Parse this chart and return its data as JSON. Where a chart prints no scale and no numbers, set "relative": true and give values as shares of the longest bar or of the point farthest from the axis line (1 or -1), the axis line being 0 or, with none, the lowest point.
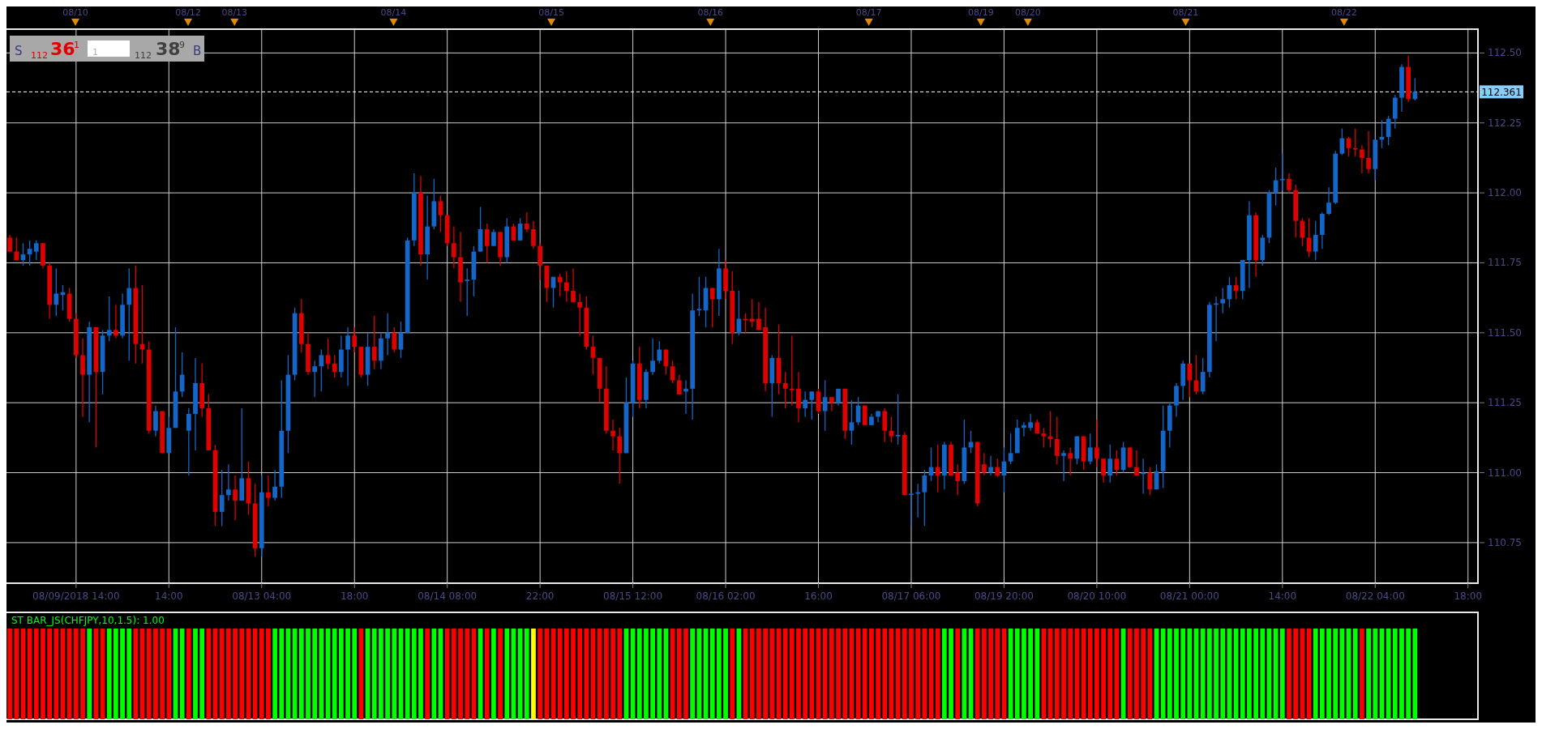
{
  "chart_data": [
    {
      "type": "candlestick",
      "categories": [
        null,
        null,
        null,
        null,
        null,
        null,
        null,
        null,
        null,
        null,
        "08/09/2018 14:00",
        null,
        null,
        null,
        null,
        null,
        null,
        null,
        null,
        null,
        null,
        null,
        null,
        null,
        "14:00",
        null,
        null,
        null,
        null,
        null,
        null,
        null,
        null,
        null,
        null,
        null,
        null,
        null,
        "08/13 04:00",
        null,
        null,
        null,
        null,
        null,
        null,
        null,
        null,
        null,
        null,
        null,
        null,
        null,
        "18:00",
        null,
        null,
        null,
        null,
        null,
        null,
        null,
        null,
        null,
        null,
        null,
        null,
        null,
        "08/14 08:00",
        null,
        null,
        null,
        null,
        null,
        null,
        null,
        null,
        null,
        null,
        null,
        null,
        null,
        "22:00",
        null,
        null,
        null,
        null,
        null,
        null,
        null,
        null,
        null,
        null,
        null,
        null,
        null,
        "08/15 12:00",
        null,
        null,
        null,
        null,
        null,
        null,
        null,
        null,
        null,
        null,
        null,
        null,
        null,
        "08/16 02:00",
        null,
        null,
        null,
        null,
        null,
        null,
        null,
        null,
        null,
        null,
        null,
        null,
        null,
        "16:00",
        null,
        null,
        null,
        null,
        null,
        null,
        null,
        null,
        null,
        null,
        null,
        null,
        null,
        "08/17 06:00",
        null,
        null,
        null,
        null,
        null,
        null,
        null,
        null,
        null,
        null,
        null,
        null,
        null,
        "08/19 20:00",
        null,
        null,
        null,
        null,
        null,
        null,
        null,
        null,
        null,
        null,
        null,
        null,
        null,
        "08/20 10:00",
        null,
        null,
        null,
        null,
        null,
        null,
        null,
        null,
        null,
        null,
        null,
        null,
        null,
        "08/21 00:00",
        null,
        null,
        null,
        null,
        null,
        null,
        null,
        null,
        null,
        null,
        null,
        null,
        null,
        "14:00",
        null,
        null,
        null,
        null,
        null,
        null,
        null,
        null,
        null,
        null,
        null,
        null,
        null,
        "08/22 04:00",
        null,
        null,
        null,
        null,
        null,
        null,
        null,
        null,
        null,
        null,
        null,
        null,
        null,
        "18:00",
        null
      ],
      "ohlc": [
        [
          111.84,
          111.85,
          111.79,
          111.79
        ],
        [
          111.79,
          111.84,
          111.76,
          111.76
        ],
        [
          111.76,
          111.82,
          111.74,
          111.78
        ],
        [
          111.78,
          111.83,
          111.74,
          111.8
        ],
        [
          111.79,
          111.83,
          111.76,
          111.82
        ],
        [
          111.82,
          111.82,
          111.73,
          111.74
        ],
        [
          111.74,
          111.75,
          111.55,
          111.6
        ],
        [
          111.6,
          111.73,
          111.56,
          111.64
        ],
        [
          111.635,
          111.67,
          111.58,
          111.645
        ],
        [
          111.64,
          111.66,
          111.54,
          111.55
        ],
        [
          111.55,
          111.57,
          111.41,
          111.42
        ],
        [
          111.42,
          111.48,
          111.2,
          111.35
        ],
        [
          111.35,
          111.54,
          111.18,
          111.52
        ],
        [
          111.52,
          111.52,
          111.09,
          111.36
        ],
        [
          111.36,
          111.51,
          111.28,
          111.49
        ],
        [
          111.49,
          111.63,
          111.47,
          111.51
        ],
        [
          111.51,
          111.6,
          111.48,
          111.49
        ],
        [
          111.49,
          111.64,
          111.48,
          111.6
        ],
        [
          111.6,
          111.73,
          111.4,
          111.66
        ],
        [
          111.66,
          111.74,
          111.39,
          111.46
        ],
        [
          111.46,
          111.67,
          111.39,
          111.44
        ],
        [
          111.44,
          111.47,
          111.14,
          111.15
        ],
        [
          111.15,
          111.24,
          111.13,
          111.22
        ],
        [
          111.22,
          111.22,
          111.07,
          111.07
        ],
        [
          111.07,
          111.2,
          111.07,
          111.16
        ],
        [
          111.16,
          111.52,
          111.16,
          111.29
        ],
        [
          111.29,
          111.43,
          111.27,
          111.35
        ],
        [
          111.15,
          111.23,
          110.99,
          111.21
        ],
        [
          111.21,
          111.41,
          111.08,
          111.32
        ],
        [
          111.32,
          111.39,
          111.2,
          111.23
        ],
        [
          111.23,
          111.28,
          111.08,
          111.08
        ],
        [
          111.08,
          111.1,
          110.81,
          110.86
        ],
        [
          110.86,
          111.01,
          110.81,
          110.92
        ],
        [
          110.92,
          111.03,
          110.9,
          110.94
        ],
        [
          110.94,
          110.99,
          110.83,
          110.9
        ],
        [
          110.9,
          111.23,
          110.9,
          110.98
        ],
        [
          110.98,
          111.04,
          110.85,
          110.89
        ],
        [
          110.89,
          110.96,
          110.7,
          110.73
        ],
        [
          110.73,
          110.99,
          110.7,
          110.93
        ],
        [
          110.93,
          110.99,
          110.88,
          110.91
        ],
        [
          110.91,
          111.01,
          110.9,
          110.95
        ],
        [
          110.95,
          111.33,
          110.91,
          111.15
        ],
        [
          111.15,
          111.42,
          111.07,
          111.35
        ],
        [
          111.35,
          111.59,
          111.33,
          111.57
        ],
        [
          111.57,
          111.62,
          111.43,
          111.46
        ],
        [
          111.46,
          111.5,
          111.35,
          111.36
        ],
        [
          111.36,
          111.4,
          111.27,
          111.38
        ],
        [
          111.38,
          111.44,
          111.29,
          111.42
        ],
        [
          111.42,
          111.48,
          111.37,
          111.39
        ],
        [
          111.39,
          111.42,
          111.34,
          111.36
        ],
        [
          111.36,
          111.49,
          111.34,
          111.44
        ],
        [
          111.44,
          111.52,
          111.31,
          111.49
        ],
        [
          111.49,
          111.52,
          111.43,
          111.45
        ],
        [
          111.45,
          111.45,
          111.34,
          111.35
        ],
        [
          111.35,
          111.5,
          111.31,
          111.45
        ],
        [
          111.45,
          111.56,
          111.37,
          111.4
        ],
        [
          111.4,
          111.5,
          111.37,
          111.48
        ],
        [
          111.48,
          111.57,
          111.42,
          111.5
        ],
        [
          111.5,
          111.52,
          111.43,
          111.44
        ],
        [
          111.44,
          111.54,
          111.41,
          111.5
        ],
        [
          111.5,
          111.84,
          111.5,
          111.83
        ],
        [
          111.83,
          112.07,
          111.81,
          112.0
        ],
        [
          112.0,
          112.06,
          111.74,
          111.78
        ],
        [
          111.78,
          111.99,
          111.69,
          111.88
        ],
        [
          111.88,
          112.05,
          111.87,
          111.97
        ],
        [
          111.97,
          111.99,
          111.86,
          111.92
        ],
        [
          111.92,
          111.92,
          111.81,
          111.82
        ],
        [
          111.82,
          111.88,
          111.73,
          111.77
        ],
        [
          111.77,
          111.86,
          111.61,
          111.68
        ],
        [
          111.685,
          111.73,
          111.56,
          111.69
        ],
        [
          111.69,
          111.81,
          111.63,
          111.79
        ],
        [
          111.79,
          111.95,
          111.79,
          111.87
        ],
        [
          111.87,
          111.89,
          111.75,
          111.81
        ],
        [
          111.81,
          111.87,
          111.81,
          111.86
        ],
        [
          111.86,
          111.86,
          111.74,
          111.77
        ],
        [
          111.77,
          111.91,
          111.75,
          111.88
        ],
        [
          111.88,
          111.89,
          111.83,
          111.83
        ],
        [
          111.83,
          111.91,
          111.83,
          111.89
        ],
        [
          111.89,
          111.93,
          111.86,
          111.87
        ],
        [
          111.87,
          111.9,
          111.8,
          111.81
        ],
        [
          111.81,
          111.82,
          111.69,
          111.74
        ],
        [
          111.74,
          111.74,
          111.61,
          111.66
        ],
        [
          111.66,
          111.7,
          111.59,
          111.7
        ],
        [
          111.7,
          111.71,
          111.63,
          111.68
        ],
        [
          111.68,
          111.72,
          111.61,
          111.65
        ],
        [
          111.65,
          111.73,
          111.61,
          111.61
        ],
        [
          111.61,
          111.64,
          111.49,
          111.59
        ],
        [
          111.59,
          111.63,
          111.44,
          111.45
        ],
        [
          111.45,
          111.49,
          111.35,
          111.41
        ],
        [
          111.41,
          111.41,
          111.25,
          111.3
        ],
        [
          111.3,
          111.38,
          111.14,
          111.15
        ],
        [
          111.15,
          111.19,
          111.08,
          111.13
        ],
        [
          111.13,
          111.16,
          110.96,
          111.07
        ],
        [
          111.07,
          111.34,
          111.07,
          111.25
        ],
        [
          111.25,
          111.4,
          111.2,
          111.39
        ],
        [
          111.39,
          111.45,
          111.23,
          111.26
        ],
        [
          111.26,
          111.37,
          111.23,
          111.36
        ],
        [
          111.36,
          111.48,
          111.35,
          111.4
        ],
        [
          111.4,
          111.47,
          111.39,
          111.44
        ],
        [
          111.44,
          111.44,
          111.35,
          111.38
        ],
        [
          111.38,
          111.4,
          111.32,
          111.33
        ],
        [
          111.33,
          111.35,
          111.28,
          111.28
        ],
        [
          111.29,
          111.33,
          111.21,
          111.3
        ],
        [
          111.3,
          111.64,
          111.19,
          111.58
        ],
        [
          111.58,
          111.7,
          111.56,
          111.585
        ],
        [
          111.58,
          111.7,
          111.52,
          111.66
        ],
        [
          111.66,
          111.66,
          111.52,
          111.62
        ],
        [
          111.62,
          111.8,
          111.56,
          111.73
        ],
        [
          111.73,
          111.76,
          111.62,
          111.65
        ],
        [
          111.65,
          111.72,
          111.46,
          111.5
        ],
        [
          111.5,
          111.65,
          111.49,
          111.55
        ],
        [
          111.55,
          111.57,
          111.5,
          111.545
        ],
        [
          111.55,
          111.62,
          111.52,
          111.54
        ],
        [
          111.55,
          111.61,
          111.51,
          111.51
        ],
        [
          111.52,
          111.59,
          111.29,
          111.32
        ],
        [
          111.32,
          111.42,
          111.2,
          111.41
        ],
        [
          111.41,
          111.53,
          111.28,
          111.32
        ],
        [
          111.32,
          111.36,
          111.23,
          111.3
        ],
        [
          111.3,
          111.49,
          111.24,
          111.295
        ],
        [
          111.3,
          111.36,
          111.18,
          111.23
        ],
        [
          111.23,
          111.29,
          111.2,
          111.26
        ],
        [
          111.26,
          111.29,
          111.19,
          111.29
        ],
        [
          111.29,
          111.3,
          111.21,
          111.22
        ],
        [
          111.22,
          111.33,
          111.15,
          111.27
        ],
        [
          111.27,
          111.27,
          111.22,
          111.25
        ],
        [
          111.25,
          111.3,
          111.24,
          111.3
        ],
        [
          111.3,
          111.3,
          111.12,
          111.15
        ],
        [
          111.15,
          111.26,
          111.1,
          111.18
        ],
        [
          111.18,
          111.27,
          111.17,
          111.24
        ],
        [
          111.24,
          111.24,
          111.17,
          111.17
        ],
        [
          111.17,
          111.21,
          111.17,
          111.2
        ],
        [
          111.2,
          111.22,
          111.18,
          111.22
        ],
        [
          111.22,
          111.23,
          111.11,
          111.15
        ],
        [
          111.15,
          111.2,
          111.11,
          111.13
        ],
        [
          111.13,
          111.28,
          111.1,
          111.135
        ],
        [
          111.135,
          111.145,
          110.92,
          110.92
        ],
        [
          110.92,
          110.93,
          110.81,
          110.925
        ],
        [
          110.925,
          110.96,
          110.84,
          110.93
        ],
        [
          110.93,
          111.01,
          110.81,
          110.99
        ],
        [
          110.99,
          111.09,
          110.97,
          111.02
        ],
        [
          111.02,
          111.1,
          110.93,
          110.99
        ],
        [
          110.99,
          111.11,
          110.94,
          111.1
        ],
        [
          111.1,
          111.11,
          110.99,
          110.99
        ],
        [
          111.0,
          111.03,
          110.92,
          110.97
        ],
        [
          110.97,
          111.19,
          110.96,
          111.09
        ],
        [
          111.09,
          111.15,
          111.07,
          111.11
        ],
        [
          111.11,
          111.11,
          110.88,
          110.89
        ],
        [
          111.03,
          111.07,
          110.99,
          111.0
        ],
        [
          111.0,
          111.06,
          110.99,
          111.02
        ],
        [
          111.02,
          111.05,
          110.985,
          110.99
        ],
        [
          110.99,
          111.09,
          110.93,
          111.04
        ],
        [
          111.04,
          111.14,
          111.03,
          111.07
        ],
        [
          111.07,
          111.19,
          111.07,
          111.16
        ],
        [
          111.16,
          111.18,
          111.13,
          111.17
        ],
        [
          111.16,
          111.21,
          111.15,
          111.18
        ],
        [
          111.18,
          111.19,
          111.14,
          111.14
        ],
        [
          111.14,
          111.16,
          111.09,
          111.13
        ],
        [
          111.13,
          111.22,
          111.09,
          111.12
        ],
        [
          111.12,
          111.2,
          111.03,
          111.06
        ],
        [
          111.06,
          111.08,
          110.97,
          111.07
        ],
        [
          111.07,
          111.09,
          110.99,
          111.05
        ],
        [
          111.05,
          111.13,
          111.03,
          111.13
        ],
        [
          111.13,
          111.13,
          111.01,
          111.04
        ],
        [
          111.04,
          111.14,
          111.03,
          111.09
        ],
        [
          111.09,
          111.19,
          111.02,
          111.05
        ],
        [
          111.05,
          111.05,
          110.965,
          110.99
        ],
        [
          110.99,
          111.1,
          110.965,
          111.05
        ],
        [
          111.05,
          111.08,
          110.99,
          111.01
        ],
        [
          111.01,
          111.11,
          111.0,
          111.09
        ],
        [
          111.09,
          111.09,
          111.02,
          111.02
        ],
        [
          111.02,
          111.08,
          110.99,
          110.99
        ],
        [
          110.995,
          111.05,
          110.925,
          111.0
        ],
        [
          111.0,
          111.02,
          110.92,
          110.94
        ],
        [
          110.94,
          111.03,
          110.94,
          111.005
        ],
        [
          111.005,
          111.24,
          110.945,
          111.15
        ],
        [
          111.15,
          111.25,
          111.09,
          111.24
        ],
        [
          111.24,
          111.32,
          111.2,
          111.31
        ],
        [
          111.31,
          111.4,
          111.26,
          111.39
        ],
        [
          111.39,
          111.39,
          111.27,
          111.33
        ],
        [
          111.33,
          111.42,
          111.28,
          111.29
        ],
        [
          111.29,
          111.41,
          111.28,
          111.36
        ],
        [
          111.36,
          111.61,
          111.34,
          111.6
        ],
        [
          111.6,
          111.63,
          111.47,
          111.605
        ],
        [
          111.605,
          111.66,
          111.57,
          111.62
        ],
        [
          111.62,
          111.7,
          111.59,
          111.67
        ],
        [
          111.67,
          111.7,
          111.62,
          111.65
        ],
        [
          111.65,
          111.76,
          111.62,
          111.76
        ],
        [
          111.76,
          111.97,
          111.66,
          111.92
        ],
        [
          111.92,
          111.93,
          111.7,
          111.76
        ],
        [
          111.76,
          111.85,
          111.74,
          111.84
        ],
        [
          111.84,
          112.01,
          111.82,
          112.0
        ],
        [
          112.0,
          112.09,
          111.955,
          112.045
        ],
        [
          112.045,
          112.14,
          112.01,
          112.05
        ],
        [
          112.05,
          112.07,
          112.0,
          112.01
        ],
        [
          112.01,
          112.03,
          111.84,
          111.9
        ],
        [
          111.9,
          111.91,
          111.81,
          111.84
        ],
        [
          111.84,
          111.91,
          111.77,
          111.79
        ],
        [
          111.79,
          111.9,
          111.76,
          111.85
        ],
        [
          111.85,
          111.93,
          111.8,
          111.925
        ],
        [
          111.925,
          112.02,
          111.92,
          111.965
        ],
        [
          111.965,
          112.15,
          111.96,
          112.14
        ],
        [
          112.14,
          112.23,
          112.135,
          112.195
        ],
        [
          112.195,
          112.2,
          112.13,
          112.16
        ],
        [
          112.16,
          112.23,
          112.13,
          112.155
        ],
        [
          112.155,
          112.17,
          112.07,
          112.125
        ],
        [
          112.125,
          112.22,
          112.07,
          112.085
        ],
        [
          112.085,
          112.19,
          112.045,
          112.19
        ],
        [
          112.19,
          112.26,
          112.16,
          112.2
        ],
        [
          112.2,
          112.275,
          112.17,
          112.265
        ],
        [
          112.265,
          112.35,
          112.23,
          112.34
        ],
        [
          112.34,
          112.46,
          112.29,
          112.45
        ],
        [
          112.45,
          112.49,
          112.325,
          112.335
        ],
        [
          112.335,
          112.41,
          112.33,
          112.361
        ],
        null,
        null,
        null,
        null,
        null,
        null,
        null,
        null,
        null
      ],
      "colors": [
        "#e00000",
        "#e00000",
        "#1466c8",
        "#1466c8",
        "#1466c8",
        "#e00000",
        "#e00000",
        "#1466c8",
        "#1466c8",
        "#e00000",
        "#e00000",
        "#e00000",
        "#1466c8",
        "#e00000",
        "#1466c8",
        "#1466c8",
        "#e00000",
        "#1466c8",
        "#1466c8",
        "#e00000",
        "#e00000",
        "#e00000",
        "#1466c8",
        "#e00000",
        "#1466c8",
        "#1466c8",
        "#1466c8",
        "#1466c8",
        "#1466c8",
        "#e00000",
        "#e00000",
        "#e00000",
        "#1466c8",
        "#1466c8",
        "#e00000",
        "#1466c8",
        "#e00000",
        "#e00000",
        "#1466c8",
        "#e00000",
        "#1466c8",
        "#1466c8",
        "#1466c8",
        "#1466c8",
        "#e00000",
        "#e00000",
        "#1466c8",
        "#1466c8",
        "#e00000",
        "#e00000",
        "#1466c8",
        "#1466c8",
        "#e00000",
        "#e00000",
        "#1466c8",
        "#e00000",
        "#1466c8",
        "#1466c8",
        "#e00000",
        "#1466c8",
        "#1466c8",
        "#1466c8",
        "#e00000",
        "#1466c8",
        "#1466c8",
        "#e00000",
        "#e00000",
        "#e00000",
        "#e00000",
        "#1466c8",
        "#1466c8",
        "#1466c8",
        "#e00000",
        "#1466c8",
        "#e00000",
        "#1466c8",
        "#e00000",
        "#1466c8",
        "#e00000",
        "#e00000",
        "#e00000",
        "#e00000",
        "#1466c8",
        "#e00000",
        "#e00000",
        "#e00000",
        "#e00000",
        "#e00000",
        "#e00000",
        "#e00000",
        "#e00000",
        "#e00000",
        "#e00000",
        "#1466c8",
        "#1466c8",
        "#e00000",
        "#1466c8",
        "#1466c8",
        "#1466c8",
        "#e00000",
        "#e00000",
        "#e00000",
        "#1466c8",
        "#1466c8",
        "#1466c8",
        "#1466c8",
        "#e00000",
        "#1466c8",
        "#e00000",
        "#e00000",
        "#1466c8",
        "#e00000",
        "#e00000",
        "#e00000",
        "#e00000",
        "#1466c8",
        "#e00000",
        "#e00000",
        "#e00000",
        "#e00000",
        "#1466c8",
        "#1466c8",
        "#e00000",
        "#1466c8",
        "#e00000",
        "#1466c8",
        "#e00000",
        "#1466c8",
        "#1466c8",
        "#e00000",
        "#1466c8",
        "#1466c8",
        "#e00000",
        "#e00000",
        "#1466c8",
        "#e00000",
        "#1466c8",
        "#1466c8",
        "#1466c8",
        "#1466c8",
        "#e00000",
        "#1466c8",
        "#e00000",
        "#e00000",
        "#1466c8",
        "#1466c8",
        "#e00000",
        "#e00000",
        "#1466c8",
        "#e00000",
        "#1466c8",
        "#1466c8",
        "#1466c8",
        "#1466c8",
        "#1466c8",
        "#e00000",
        "#e00000",
        "#e00000",
        "#e00000",
        "#1466c8",
        "#e00000",
        "#1466c8",
        "#e00000",
        "#1466c8",
        "#e00000",
        "#e00000",
        "#1466c8",
        "#e00000",
        "#1466c8",
        "#e00000",
        "#e00000",
        "#1466c8",
        "#e00000",
        "#1466c8",
        "#1466c8",
        "#1466c8",
        "#1466c8",
        "#1466c8",
        "#e00000",
        "#e00000",
        "#1466c8",
        "#1466c8",
        "#1466c8",
        "#1466c8",
        "#1466c8",
        "#e00000",
        "#1466c8",
        "#1466c8",
        "#e00000",
        "#1466c8",
        "#1466c8",
        "#1466c8",
        "#1466c8",
        "#e00000",
        "#e00000",
        "#e00000",
        "#e00000",
        "#1466c8",
        "#1466c8",
        "#1466c8",
        "#1466c8",
        "#1466c8",
        "#e00000",
        "#e00000",
        "#e00000",
        "#e00000",
        "#1466c8",
        "#1466c8",
        "#1466c8",
        "#1466c8",
        "#1466c8",
        "#e00000",
        "#1466c8",
        null,
        null,
        null,
        null,
        null,
        null,
        null,
        null,
        null
      ],
      "ylim": [
        110.605,
        112.585
      ],
      "yticks": [
        {
          "value": 110.75,
          "label": "110.75"
        },
        {
          "value": 111,
          "label": "111.00"
        },
        {
          "value": 111.25,
          "label": "111.25"
        },
        {
          "value": 111.5,
          "label": "111.50"
        },
        {
          "value": 111.75,
          "label": "111.75"
        },
        {
          "value": 112,
          "label": "112.00"
        },
        {
          "value": 112.25,
          "label": "112.25"
        },
        {
          "value": 112.5,
          "label": "112.50"
        }
      ],
      "grid": true,
      "ref_lines": [
        {
          "axis": "y",
          "value": 112.361,
          "label": "112.361",
          "color": "#ffffff",
          "line_style": "dashed"
        }
      ],
      "annotations": [
        "S",
        "112",
        "36",
        "1",
        "1",
        "112",
        "38",
        "9",
        "B",
        "08/10",
        "08/12",
        "08/13",
        "08/14",
        "08/15",
        "08/16",
        "08/17",
        "08/19",
        "08/20",
        "08/21",
        "08/22"
      ]
    },
    {
      "type": "bar",
      "relative": true,
      "title": "ST BAR_JS(CHFJPY,10,1.5): 1.00",
      "categories": [
        null,
        null,
        null,
        null,
        null,
        null,
        null,
        null,
        null,
        null,
        null,
        null,
        null,
        null,
        null,
        null,
        null,
        null,
        null,
        null,
        null,
        null,
        null,
        null,
        null,
        null,
        null,
        null,
        null,
        null,
        null,
        null,
        null,
        null,
        null,
        null,
        null,
        null,
        null,
        null,
        null,
        null,
        null,
        null,
        null,
        null,
        null,
        null,
        null,
        null,
        null,
        null,
        null,
        null,
        null,
        null,
        null,
        null,
        null,
        null,
        null,
        null,
        null,
        null,
        null,
        null,
        null,
        null,
        null,
        null,
        null,
        null,
        null,
        null,
        null,
        null,
        null,
        null,
        null,
        null,
        null,
        null,
        null,
        null,
        null,
        null,
        null,
        null,
        null,
        null,
        null,
        null,
        null,
        null,
        null,
        null,
        null,
        null,
        null,
        null,
        null,
        null,
        null,
        null,
        null,
        null,
        null,
        null,
        null,
        null,
        null,
        null,
        null,
        null,
        null,
        null,
        null,
        null,
        null,
        null,
        null,
        null,
        null,
        null,
        null,
        null,
        null,
        null,
        null,
        null,
        null,
        null,
        null,
        null,
        null,
        null,
        null,
        null,
        null,
        null,
        null,
        null,
        null,
        null,
        null,
        null,
        null,
        null,
        null,
        null,
        null,
        null,
        null,
        null,
        null,
        null,
        null,
        null,
        null,
        null,
        null,
        null,
        null,
        null,
        null,
        null,
        null,
        null,
        null,
        null,
        null,
        null,
        null,
        null,
        null,
        null,
        null,
        null,
        null,
        null,
        null,
        null,
        null,
        null,
        null,
        null,
        null,
        null,
        null,
        null,
        null,
        null,
        null,
        null,
        null,
        null,
        null,
        null,
        null,
        null,
        null,
        null,
        null,
        null,
        null,
        null,
        null,
        null,
        null,
        null,
        null,
        null,
        null,
        null,
        null,
        null,
        null,
        null,
        null,
        null,
        null,
        null
      ],
      "values": [
        1,
        1,
        1,
        1,
        1,
        1,
        1,
        1,
        1,
        1,
        1,
        1,
        1,
        1,
        1,
        1,
        1,
        1,
        1,
        1,
        1,
        1,
        1,
        1,
        1,
        1,
        1,
        1,
        1,
        1,
        1,
        1,
        1,
        1,
        1,
        1,
        1,
        1,
        1,
        1,
        1,
        1,
        1,
        1,
        1,
        1,
        1,
        1,
        1,
        1,
        1,
        1,
        1,
        1,
        1,
        1,
        1,
        1,
        1,
        1,
        1,
        1,
        1,
        1,
        1,
        1,
        1,
        1,
        1,
        1,
        1,
        1,
        1,
        1,
        1,
        1,
        1,
        1,
        1,
        1,
        1,
        1,
        1,
        1,
        1,
        1,
        1,
        1,
        1,
        1,
        1,
        1,
        1,
        1,
        1,
        1,
        1,
        1,
        1,
        1,
        1,
        1,
        1,
        1,
        1,
        1,
        1,
        1,
        1,
        1,
        1,
        1,
        1,
        1,
        1,
        1,
        1,
        1,
        1,
        1,
        1,
        1,
        1,
        1,
        1,
        1,
        1,
        1,
        1,
        1,
        1,
        1,
        1,
        1,
        1,
        1,
        1,
        1,
        1,
        1,
        1,
        1,
        1,
        1,
        1,
        1,
        1,
        1,
        1,
        1,
        1,
        1,
        1,
        1,
        1,
        1,
        1,
        1,
        1,
        1,
        1,
        1,
        1,
        1,
        1,
        1,
        1,
        1,
        1,
        1,
        1,
        1,
        1,
        1,
        1,
        1,
        1,
        1,
        1,
        1,
        1,
        1,
        1,
        1,
        1,
        1,
        1,
        1,
        1,
        1,
        1,
        1,
        1,
        1,
        1,
        1,
        1,
        1,
        1,
        1,
        1,
        1,
        1,
        1,
        1,
        1,
        1,
        1,
        1,
        1,
        1,
        1,
        1,
        null,
        null,
        null,
        null,
        null,
        null,
        null,
        null,
        null
      ],
      "colors": [
        "#ff0000",
        "#ff0000",
        "#ff0000",
        "#ff0000",
        "#ff0000",
        "#ff0000",
        "#ff0000",
        "#ff0000",
        "#ff0000",
        "#ff0000",
        "#ff0000",
        "#ff0000",
        "#00ff00",
        "#ff0000",
        "#ff0000",
        "#00ff00",
        "#00ff00",
        "#00ff00",
        "#00ff00",
        "#ff0000",
        "#ff0000",
        "#ff0000",
        "#ff0000",
        "#ff0000",
        "#ff0000",
        "#00ff00",
        "#00ff00",
        "#ff0000",
        "#00ff00",
        "#00ff00",
        "#ff0000",
        "#ff0000",
        "#ff0000",
        "#ff0000",
        "#ff0000",
        "#ff0000",
        "#ff0000",
        "#ff0000",
        "#ff0000",
        "#ff0000",
        "#00ff00",
        "#00ff00",
        "#00ff00",
        "#00ff00",
        "#00ff00",
        "#00ff00",
        "#00ff00",
        "#00ff00",
        "#00ff00",
        "#00ff00",
        "#00ff00",
        "#00ff00",
        "#00ff00",
        "#ff0000",
        "#00ff00",
        "#00ff00",
        "#00ff00",
        "#00ff00",
        "#00ff00",
        "#00ff00",
        "#00ff00",
        "#00ff00",
        "#00ff00",
        "#ff0000",
        "#00ff00",
        "#00ff00",
        "#ff0000",
        "#ff0000",
        "#ff0000",
        "#ff0000",
        "#ff0000",
        "#00ff00",
        "#ff0000",
        "#00ff00",
        "#ff0000",
        "#00ff00",
        "#00ff00",
        "#00ff00",
        "#00ff00",
        "#ffff00",
        "#ff0000",
        "#ff0000",
        "#ff0000",
        "#ff0000",
        "#ff0000",
        "#ff0000",
        "#ff0000",
        "#ff0000",
        "#ff0000",
        "#ff0000",
        "#ff0000",
        "#ff0000",
        "#ff0000",
        "#00ff00",
        "#00ff00",
        "#00ff00",
        "#00ff00",
        "#00ff00",
        "#00ff00",
        "#00ff00",
        "#ff0000",
        "#ff0000",
        "#ff0000",
        "#00ff00",
        "#00ff00",
        "#00ff00",
        "#00ff00",
        "#00ff00",
        "#00ff00",
        "#ff0000",
        "#00ff00",
        "#ff0000",
        "#ff0000",
        "#ff0000",
        "#ff0000",
        "#ff0000",
        "#ff0000",
        "#ff0000",
        "#ff0000",
        "#ff0000",
        "#ff0000",
        "#ff0000",
        "#ff0000",
        "#ff0000",
        "#ff0000",
        "#ff0000",
        "#ff0000",
        "#ff0000",
        "#ff0000",
        "#ff0000",
        "#ff0000",
        "#ff0000",
        "#ff0000",
        "#ff0000",
        "#ff0000",
        "#ff0000",
        "#ff0000",
        "#ff0000",
        "#ff0000",
        "#ff0000",
        "#ff0000",
        "#00ff00",
        "#00ff00",
        "#ff0000",
        "#00ff00",
        "#00ff00",
        "#ff0000",
        "#ff0000",
        "#ff0000",
        "#ff0000",
        "#ff0000",
        "#00ff00",
        "#00ff00",
        "#00ff00",
        "#00ff00",
        "#00ff00",
        "#ff0000",
        "#ff0000",
        "#ff0000",
        "#ff0000",
        "#ff0000",
        "#ff0000",
        "#ff0000",
        "#ff0000",
        "#ff0000",
        "#ff0000",
        "#ff0000",
        "#ff0000",
        "#00ff00",
        "#ff0000",
        "#ff0000",
        "#ff0000",
        "#ff0000",
        "#00ff00",
        "#00ff00",
        "#00ff00",
        "#00ff00",
        "#00ff00",
        "#00ff00",
        "#00ff00",
        "#00ff00",
        "#00ff00",
        "#00ff00",
        "#00ff00",
        "#00ff00",
        "#00ff00",
        "#00ff00",
        "#00ff00",
        "#00ff00",
        "#00ff00",
        "#00ff00",
        "#00ff00",
        "#00ff00",
        "#ff0000",
        "#ff0000",
        "#ff0000",
        "#ff0000",
        "#00ff00",
        "#00ff00",
        "#00ff00",
        "#00ff00",
        "#00ff00",
        "#00ff00",
        "#00ff00",
        "#ff0000",
        "#00ff00",
        "#00ff00",
        "#00ff00",
        "#00ff00",
        "#00ff00",
        "#00ff00",
        "#00ff00",
        "#00ff00",
        null,
        null,
        null,
        null,
        null,
        null,
        null,
        null,
        null
      ]
    }
  ]
}
